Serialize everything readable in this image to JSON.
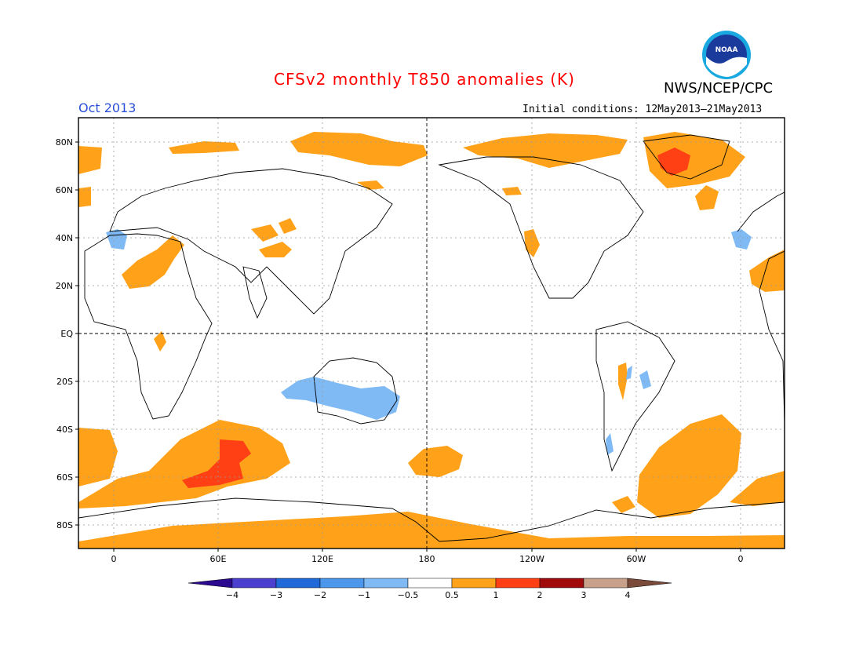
{
  "title": "CFSv2 monthly T850 anomalies (K)",
  "agency": "NWS/NCEP/CPC",
  "logo_text": "NOAA",
  "valid_month": "Oct 2013",
  "initial_conditions": "Initial conditions: 12May2013–21May2013",
  "lat_labels": [
    "80N",
    "60N",
    "40N",
    "20N",
    "EQ",
    "20S",
    "40S",
    "60S",
    "80S"
  ],
  "lon_labels": [
    "0",
    "60E",
    "120E",
    "180",
    "120W",
    "60W",
    "0"
  ],
  "colorbar": {
    "tick_labels": [
      "−4",
      "−3",
      "−2",
      "−1",
      "−0.5",
      "0.5",
      "1",
      "2",
      "3",
      "4"
    ],
    "colors": [
      "#2b0a8f",
      "#4a3fcf",
      "#1f6ad8",
      "#4a97ec",
      "#7fbaf5",
      "#ffffff",
      "#ffa21a",
      "#ff3f14",
      "#a00a0a",
      "#c9a08a",
      "#7a4a3a"
    ]
  },
  "colors": {
    "warm_1": "#ffa21a",
    "warm_2": "#ff3f14",
    "cool_1": "#7fbaf5",
    "title": "#ff0000",
    "month": "#2a4fd8"
  }
}
